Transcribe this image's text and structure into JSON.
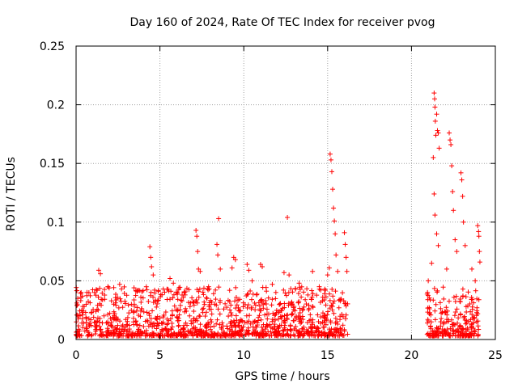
{
  "chart_data": {
    "type": "scatter",
    "title": "Day 160 of 2024, Rate Of TEC Index for receiver pvog",
    "xlabel": "GPS time / hours",
    "ylabel": "ROTI / TECUs",
    "xlim": [
      0,
      25
    ],
    "ylim": [
      0,
      0.25
    ],
    "xticks": [
      0,
      5,
      10,
      15,
      20,
      25
    ],
    "xtick_labels": [
      "0",
      "5",
      "10",
      "15",
      "20",
      "25"
    ],
    "yticks": [
      0,
      0.05,
      0.1,
      0.15,
      0.2,
      0.25
    ],
    "ytick_labels": [
      "0",
      "0.05",
      "0.1",
      "0.15",
      "0.2",
      "0.25"
    ],
    "grid": true,
    "marker": "+",
    "color": "#ff0000",
    "coverage_segments": [
      [
        0.0,
        16.2
      ],
      [
        20.9,
        24.1
      ]
    ],
    "series": [
      {
        "name": "ROTI",
        "points": [
          [
            0.1,
            0.035
          ],
          [
            0.3,
            0.04
          ],
          [
            0.6,
            0.03
          ],
          [
            1.1,
            0.04
          ],
          [
            1.35,
            0.059
          ],
          [
            1.45,
            0.056
          ],
          [
            1.9,
            0.045
          ],
          [
            2.6,
            0.047
          ],
          [
            3.3,
            0.03
          ],
          [
            4.4,
            0.079
          ],
          [
            4.45,
            0.07
          ],
          [
            4.5,
            0.062
          ],
          [
            4.6,
            0.055
          ],
          [
            5.2,
            0.043
          ],
          [
            5.6,
            0.052
          ],
          [
            5.8,
            0.048
          ],
          [
            6.5,
            0.038
          ],
          [
            7.15,
            0.093
          ],
          [
            7.2,
            0.088
          ],
          [
            7.25,
            0.075
          ],
          [
            7.3,
            0.06
          ],
          [
            7.4,
            0.058
          ],
          [
            7.9,
            0.045
          ],
          [
            8.4,
            0.081
          ],
          [
            8.45,
            0.072
          ],
          [
            8.5,
            0.103
          ],
          [
            8.6,
            0.06
          ],
          [
            9.3,
            0.061
          ],
          [
            9.4,
            0.07
          ],
          [
            9.5,
            0.068
          ],
          [
            10.2,
            0.064
          ],
          [
            10.3,
            0.059
          ],
          [
            10.5,
            0.05
          ],
          [
            11.0,
            0.064
          ],
          [
            11.1,
            0.062
          ],
          [
            11.7,
            0.047
          ],
          [
            12.4,
            0.057
          ],
          [
            12.6,
            0.104
          ],
          [
            12.7,
            0.055
          ],
          [
            13.3,
            0.048
          ],
          [
            14.1,
            0.058
          ],
          [
            14.5,
            0.045
          ],
          [
            15.0,
            0.055
          ],
          [
            15.1,
            0.061
          ],
          [
            15.15,
            0.158
          ],
          [
            15.2,
            0.153
          ],
          [
            15.25,
            0.143
          ],
          [
            15.3,
            0.128
          ],
          [
            15.35,
            0.112
          ],
          [
            15.4,
            0.101
          ],
          [
            15.45,
            0.09
          ],
          [
            15.5,
            0.072
          ],
          [
            15.6,
            0.058
          ],
          [
            16.0,
            0.091
          ],
          [
            16.05,
            0.081
          ],
          [
            16.1,
            0.07
          ],
          [
            16.15,
            0.058
          ],
          [
            21.0,
            0.05
          ],
          [
            21.2,
            0.065
          ],
          [
            21.35,
            0.21
          ],
          [
            21.38,
            0.205
          ],
          [
            21.4,
            0.198
          ],
          [
            21.42,
            0.186
          ],
          [
            21.45,
            0.174
          ],
          [
            21.5,
            0.192
          ],
          [
            21.55,
            0.178
          ],
          [
            21.6,
            0.176
          ],
          [
            21.65,
            0.163
          ],
          [
            21.3,
            0.155
          ],
          [
            21.35,
            0.124
          ],
          [
            21.4,
            0.106
          ],
          [
            21.5,
            0.09
          ],
          [
            21.6,
            0.08
          ],
          [
            22.1,
            0.06
          ],
          [
            22.25,
            0.176
          ],
          [
            22.3,
            0.17
          ],
          [
            22.35,
            0.166
          ],
          [
            22.4,
            0.148
          ],
          [
            22.45,
            0.126
          ],
          [
            22.5,
            0.11
          ],
          [
            22.6,
            0.085
          ],
          [
            22.7,
            0.075
          ],
          [
            22.95,
            0.142
          ],
          [
            23.0,
            0.136
          ],
          [
            23.05,
            0.122
          ],
          [
            23.1,
            0.1
          ],
          [
            23.2,
            0.08
          ],
          [
            23.6,
            0.06
          ],
          [
            23.8,
            0.05
          ],
          [
            23.95,
            0.097
          ],
          [
            24.0,
            0.092
          ],
          [
            24.02,
            0.088
          ],
          [
            24.05,
            0.075
          ],
          [
            24.08,
            0.066
          ]
        ]
      }
    ]
  }
}
